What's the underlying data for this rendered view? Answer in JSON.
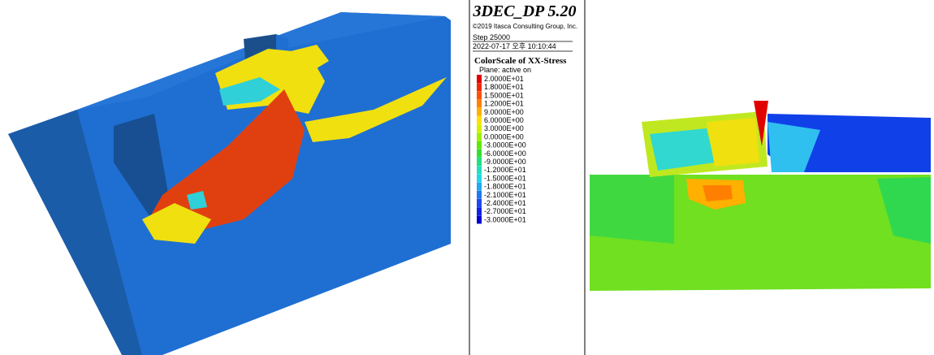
{
  "header": {
    "title": "3DEC_DP 5.20",
    "copyright": "©2019 Itasca Consulting Group, Inc.",
    "step": "Step 25000",
    "timestamp": "2022-07-17 오후 10:10:44"
  },
  "legend": {
    "title": "ColorScale of XX-Stress",
    "subtitle": "Plane: active on",
    "items": [
      {
        "label": "2.0000E+01",
        "color": "#e00000"
      },
      {
        "label": "1.8000E+01",
        "color": "#f02800"
      },
      {
        "label": "1.5000E+01",
        "color": "#ff5000"
      },
      {
        "label": "1.2000E+01",
        "color": "#ff8000"
      },
      {
        "label": "9.0000E+00",
        "color": "#ffb000"
      },
      {
        "label": "6.0000E+00",
        "color": "#ffe000"
      },
      {
        "label": "3.0000E+00",
        "color": "#d8f000"
      },
      {
        "label": "0.0000E+00",
        "color": "#a0f000"
      },
      {
        "label": "-3.0000E+00",
        "color": "#60e800"
      },
      {
        "label": "-6.0000E+00",
        "color": "#30e030"
      },
      {
        "label": "-9.0000E+00",
        "color": "#20e080"
      },
      {
        "label": "-1.2000E+01",
        "color": "#20e0c0"
      },
      {
        "label": "-1.5000E+01",
        "color": "#20d8e8"
      },
      {
        "label": "-1.8000E+01",
        "color": "#20a8f0"
      },
      {
        "label": "-2.1000E+01",
        "color": "#2078f0"
      },
      {
        "label": "-2.4000E+01",
        "color": "#2048f0"
      },
      {
        "label": "-2.7000E+01",
        "color": "#1020e8"
      },
      {
        "label": "-3.0000E+01",
        "color": "#0000d0"
      }
    ]
  }
}
